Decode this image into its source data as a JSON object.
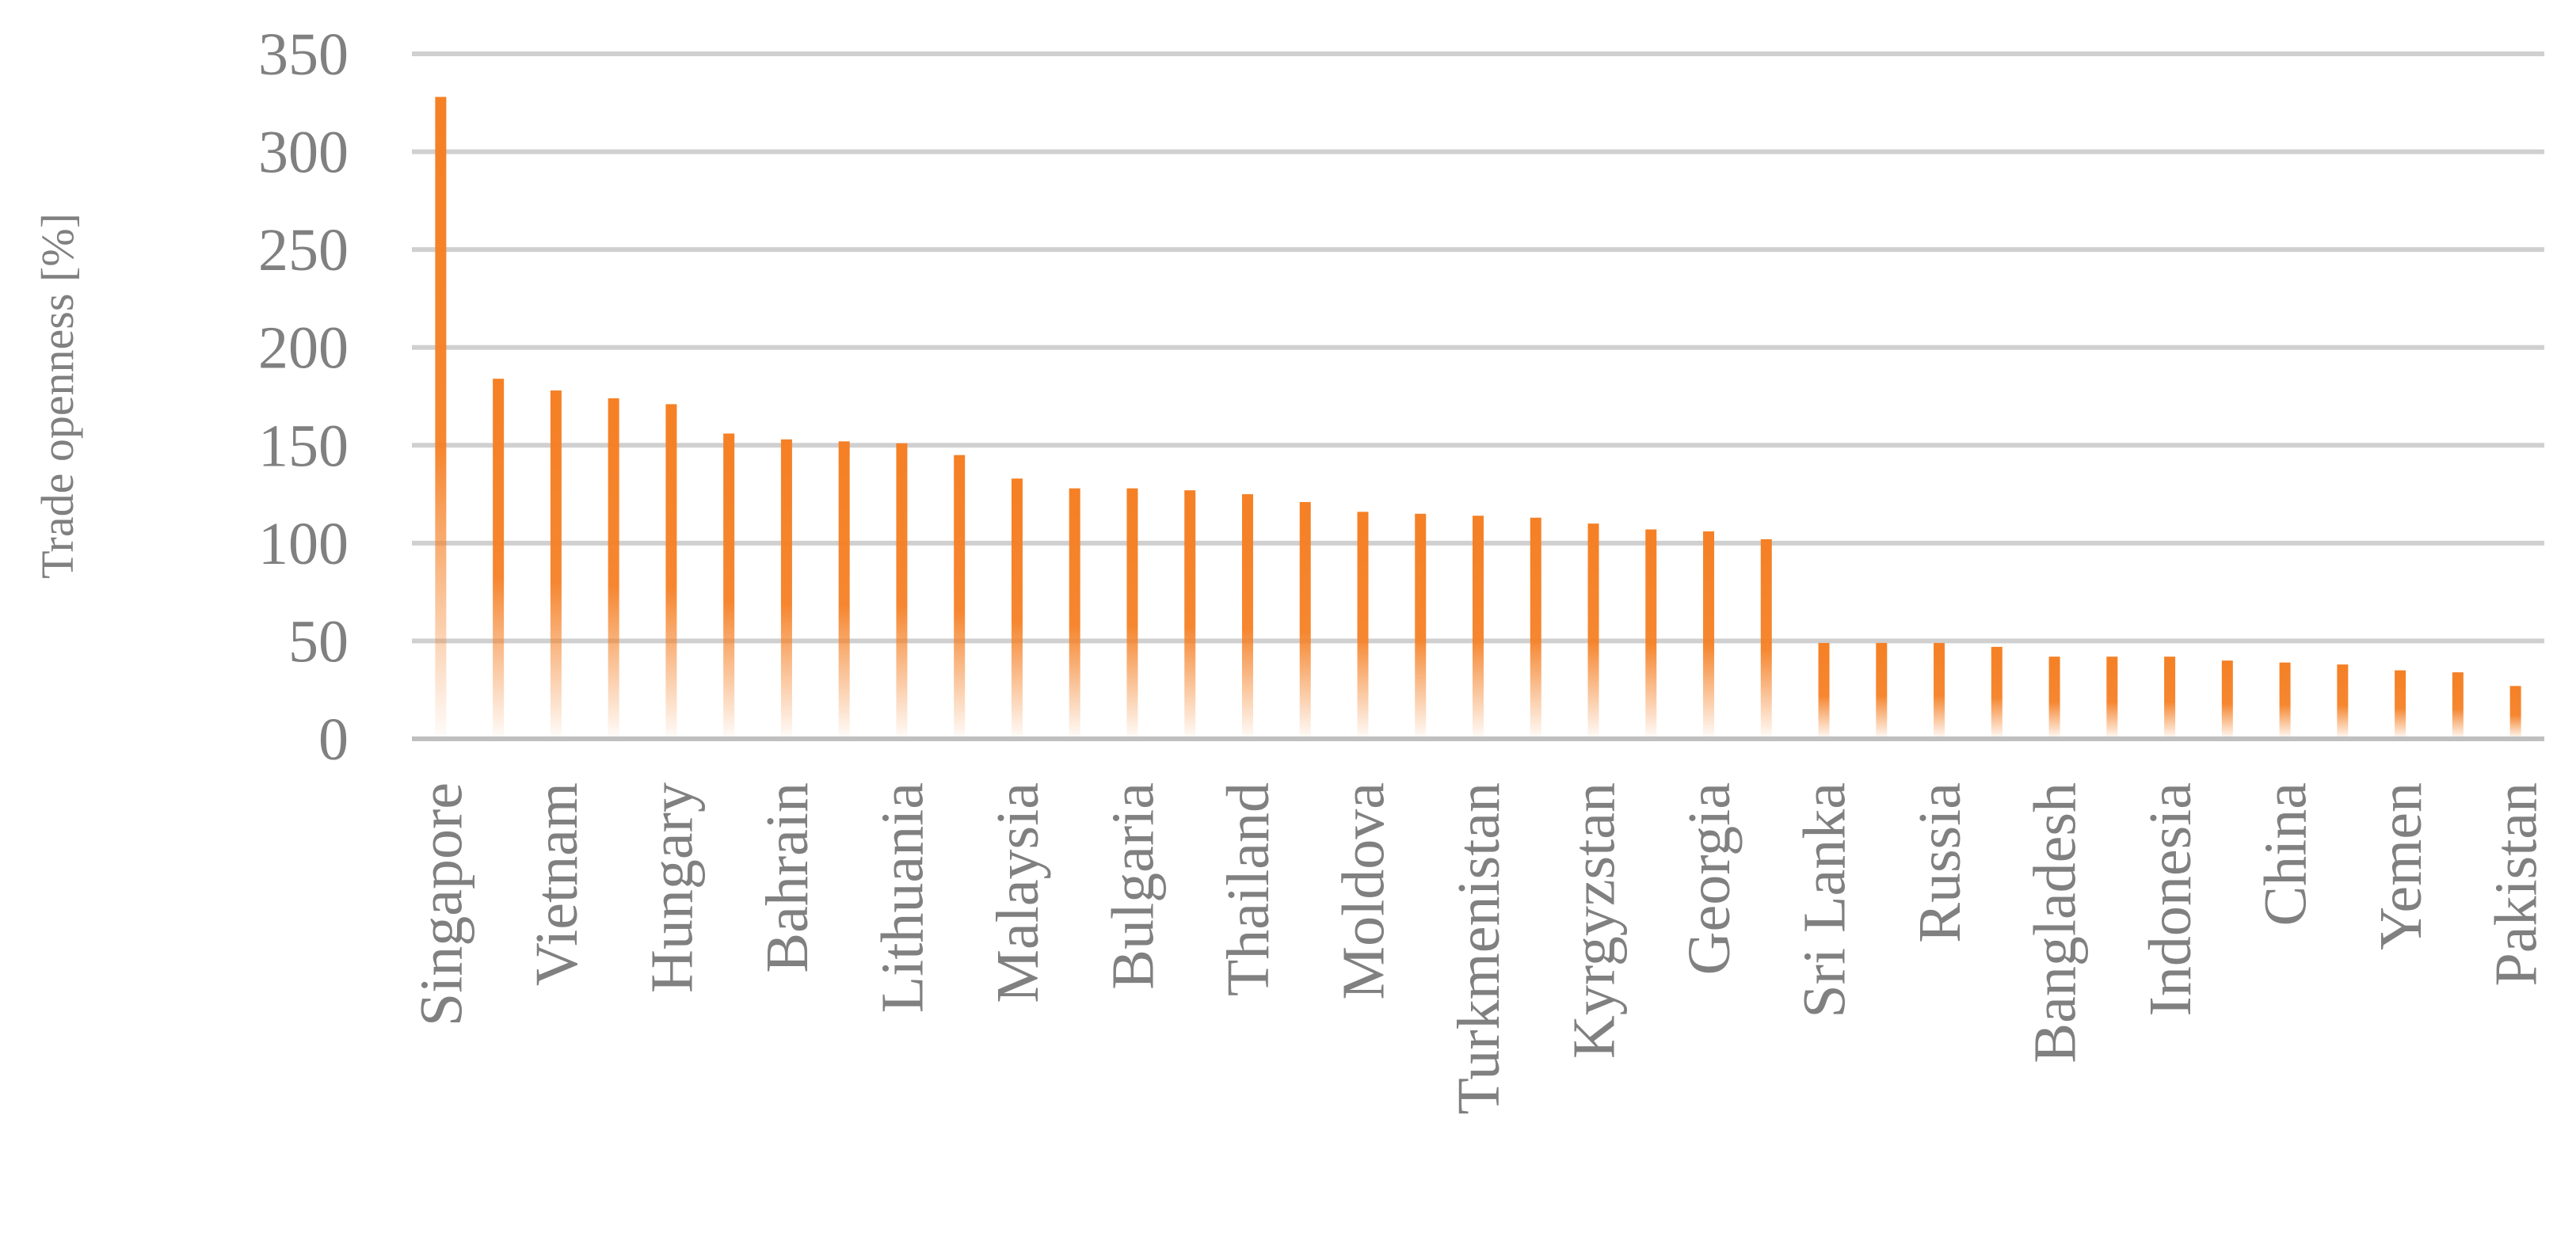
{
  "chart_data": {
    "type": "bar",
    "title": "",
    "xlabel": "",
    "ylabel": "Trade openness [%]",
    "ylim": [
      0,
      350
    ],
    "yticks": [
      "0",
      "50",
      "100",
      "150",
      "200",
      "250",
      "300",
      "350"
    ],
    "grid": true,
    "bar_gradient": true,
    "categories": [
      "Singapore",
      "",
      "Vietnam",
      "",
      "Hungary",
      "",
      "Bahrain",
      "",
      "Lithuania",
      "",
      "Malaysia",
      "",
      "Bulgaria",
      "",
      "Thailand",
      "",
      "Moldova",
      "",
      "Turkmenistan",
      "",
      "Kyrgyzstan",
      "",
      "Georgia",
      "",
      "Sri Lanka",
      "",
      "Russia",
      "",
      "Bangladesh",
      "",
      "Indonesia",
      "",
      "China",
      "",
      "Yemen",
      "",
      "Pakistan"
    ],
    "values": [
      328,
      184,
      178,
      174,
      171,
      156,
      153,
      152,
      151,
      145,
      133,
      128,
      128,
      127,
      125,
      121,
      116,
      115,
      114,
      113,
      110,
      107,
      106,
      102,
      49,
      49,
      49,
      47,
      42,
      42,
      42,
      40,
      39,
      38,
      35,
      34,
      27
    ],
    "colors": {
      "bar": "#f58025",
      "grid": "#d0d0d0",
      "axis": "#bfbfbf",
      "text": "#808080"
    }
  }
}
